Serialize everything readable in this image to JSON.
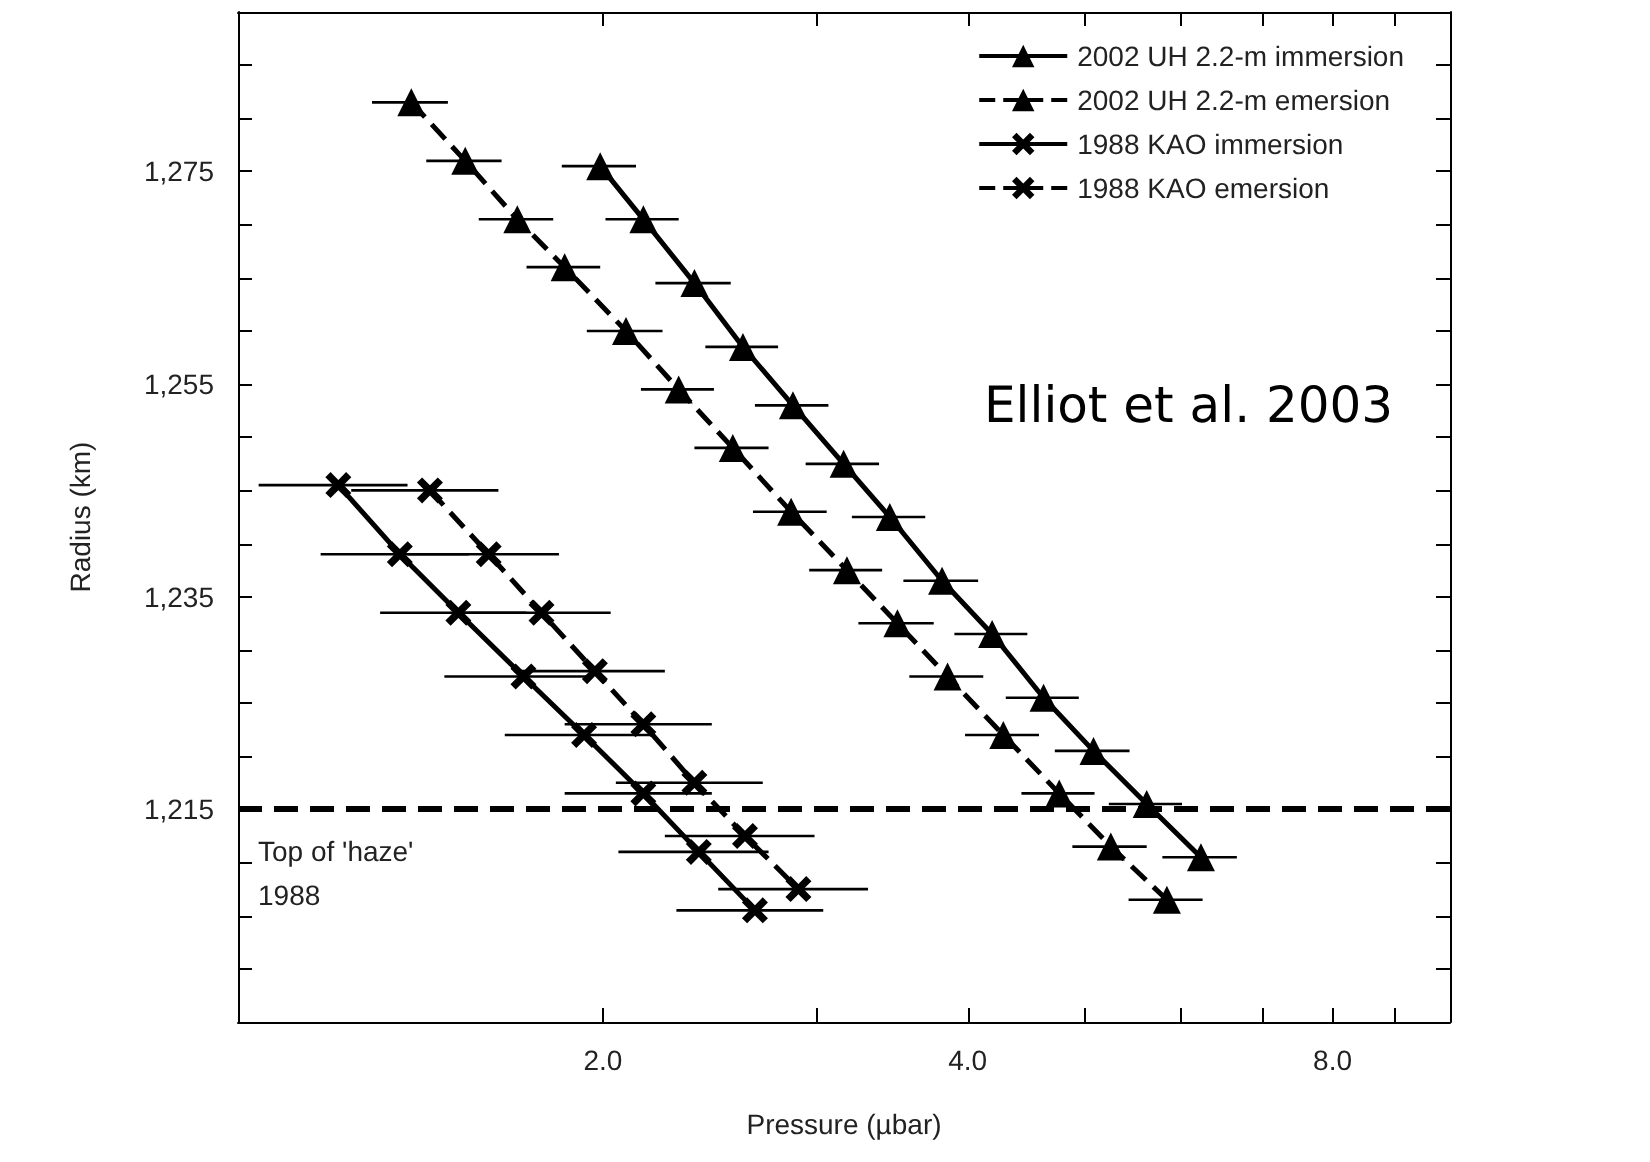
{
  "chart_data": {
    "type": "line",
    "xlabel": "Pressure (µbar)",
    "ylabel": "Radius (km)",
    "log": "x",
    "xlim": [
      1,
      10
    ],
    "ylim": [
      1195,
      1290
    ],
    "xticks": [
      {
        "value": 2,
        "label": "2.0"
      },
      {
        "value": 3,
        "label": null
      },
      {
        "value": 4,
        "label": "4.0"
      },
      {
        "value": 5,
        "label": null
      },
      {
        "value": 6,
        "label": null
      },
      {
        "value": 7,
        "label": null
      },
      {
        "value": 8,
        "label": "8.0"
      },
      {
        "value": 9,
        "label": null
      }
    ],
    "yticks": [
      {
        "value": 1200,
        "label": null
      },
      {
        "value": 1205,
        "label": null
      },
      {
        "value": 1210,
        "label": null
      },
      {
        "value": 1215,
        "label": "1,215"
      },
      {
        "value": 1220,
        "label": null
      },
      {
        "value": 1225,
        "label": null
      },
      {
        "value": 1230,
        "label": null
      },
      {
        "value": 1235,
        "label": "1,235"
      },
      {
        "value": 1240,
        "label": null
      },
      {
        "value": 1245,
        "label": null
      },
      {
        "value": 1250,
        "label": null
      },
      {
        "value": 1255,
        "label": "1,255"
      },
      {
        "value": 1260,
        "label": null
      },
      {
        "value": 1265,
        "label": null
      },
      {
        "value": 1270,
        "label": null
      },
      {
        "value": 1275,
        "label": "1,275"
      },
      {
        "value": 1280,
        "label": null
      },
      {
        "value": 1285,
        "label": null
      }
    ],
    "grid": false,
    "legend": "top right",
    "series": [
      {
        "name": "2002 UH 2.2-m immersion",
        "color": "#000000",
        "marker": "triangle",
        "line_style": "solid",
        "x": [
          1.99,
          2.16,
          2.38,
          2.61,
          2.87,
          3.16,
          3.45,
          3.81,
          4.19,
          4.62,
          5.08,
          5.62,
          6.23
        ],
        "values": [
          1275.5,
          1270.5,
          1264.5,
          1258.5,
          1253,
          1247.5,
          1242.5,
          1236.5,
          1231.5,
          1225.5,
          1220.5,
          1215.5,
          1210.5
        ],
        "xerrors": [
          0.14,
          0.15,
          0.17,
          0.18,
          0.2,
          0.22,
          0.24,
          0.27,
          0.29,
          0.32,
          0.36,
          0.39,
          0.44
        ]
      },
      {
        "name": "2002 UH 2.2-m emersion",
        "color": "#000000",
        "marker": "triangle",
        "line_style": "dashed",
        "x": [
          1.39,
          1.54,
          1.7,
          1.86,
          2.09,
          2.31,
          2.56,
          2.86,
          3.18,
          3.5,
          3.85,
          4.28,
          4.76,
          5.25,
          5.84
        ],
        "values": [
          1281.5,
          1276,
          1270.5,
          1266,
          1260,
          1254.5,
          1249,
          1243,
          1237.5,
          1232.5,
          1227.5,
          1222,
          1216.5,
          1211.5,
          1206.5
        ],
        "xerrors": [
          0.1,
          0.11,
          0.12,
          0.13,
          0.15,
          0.16,
          0.18,
          0.2,
          0.22,
          0.25,
          0.27,
          0.3,
          0.33,
          0.37,
          0.41
        ]
      },
      {
        "name": "1988 KAO immersion",
        "color": "#000000",
        "marker": "cross",
        "line_style": "solid",
        "x": [
          1.21,
          1.36,
          1.52,
          1.72,
          1.93,
          2.16,
          2.4,
          2.67
        ],
        "values": [
          1245.5,
          1239,
          1233.5,
          1227.5,
          1222,
          1216.5,
          1211,
          1205.5
        ],
        "xerrors": [
          0.17,
          0.19,
          0.21,
          0.24,
          0.27,
          0.3,
          0.34,
          0.37
        ]
      },
      {
        "name": "1988 KAO emersion",
        "color": "#000000",
        "marker": "cross",
        "line_style": "dashed",
        "x": [
          1.44,
          1.61,
          1.78,
          1.97,
          2.16,
          2.38,
          2.62,
          2.9
        ],
        "values": [
          1245,
          1239,
          1233.5,
          1228,
          1223,
          1217.5,
          1212.5,
          1207.5
        ],
        "xerrors": [
          0.2,
          0.23,
          0.25,
          0.28,
          0.3,
          0.33,
          0.37,
          0.41
        ]
      }
    ],
    "ref_lines": [
      {
        "axis": "y",
        "value": 1215,
        "label": "Top of 'haze'\n1988",
        "color": "#000000",
        "line_style": "dashed"
      }
    ],
    "annotations": [
      "Elliot et al. 2003"
    ]
  }
}
